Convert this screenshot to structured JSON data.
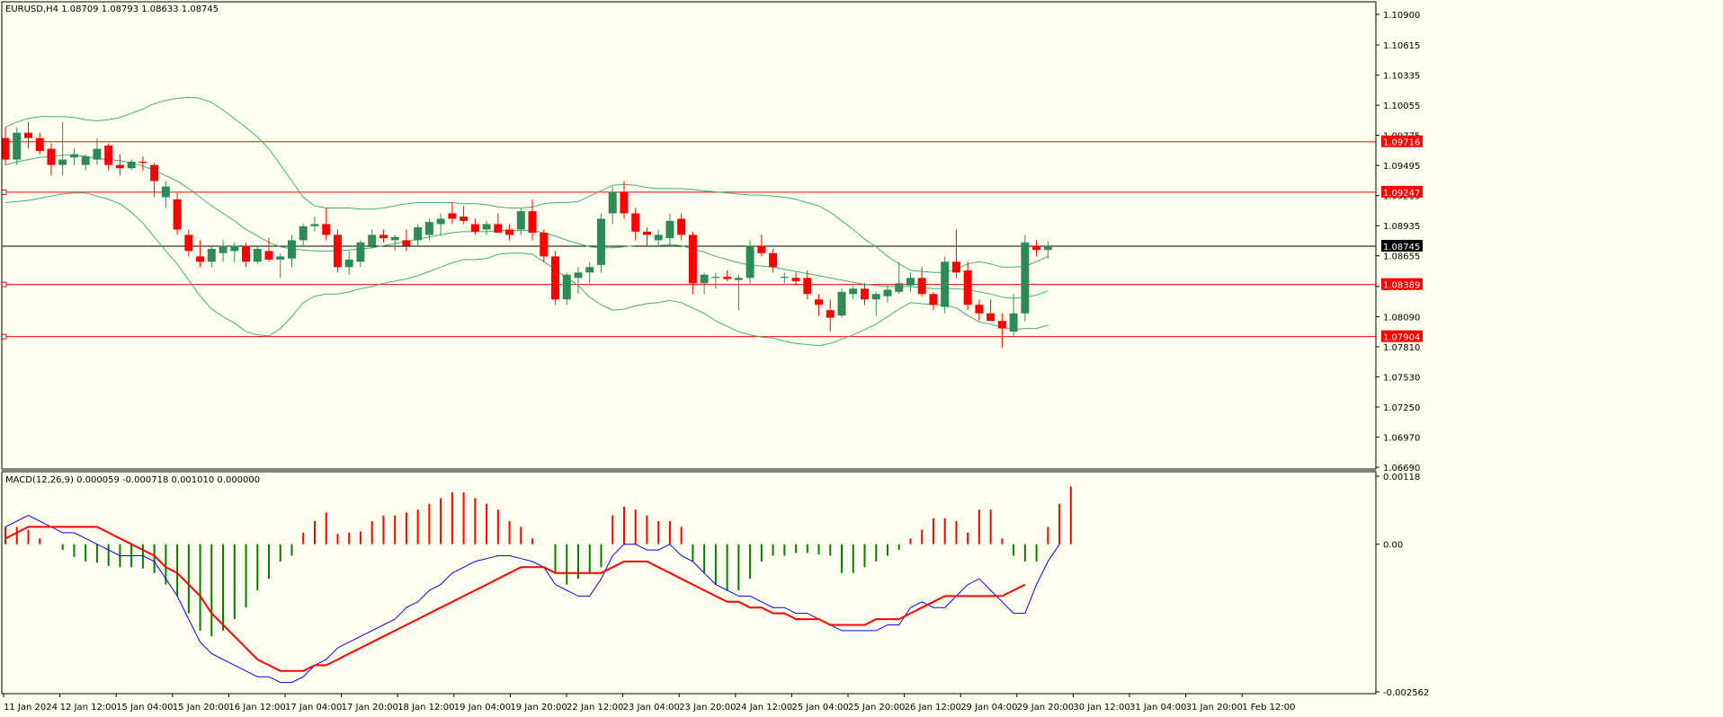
{
  "chart_data": [
    {
      "type": "candlestick",
      "header": "EURUSD,H4  1.08709 1.08793 1.08633 1.08745",
      "ylim": [
        1.0669,
        1.11
      ],
      "price_ticks": [
        "1.10900",
        "1.10615",
        "1.10335",
        "1.10055",
        "1.09775",
        "1.09495",
        "1.09215",
        "1.08935",
        "1.08655",
        "1.08370",
        "1.08090",
        "1.07810",
        "1.07530",
        "1.07250",
        "1.06970",
        "1.06690"
      ],
      "current_price": 1.08745,
      "current_label": "1.08745",
      "hlines": [
        {
          "price": 1.09716,
          "label": "1.09716"
        },
        {
          "price": 1.09247,
          "label": "1.09247"
        },
        {
          "price": 1.08389,
          "label": "1.08389"
        },
        {
          "price": 1.07904,
          "label": "1.07904"
        }
      ],
      "candles": [
        [
          1.0975,
          1.0985,
          1.095,
          1.0955
        ],
        [
          1.0955,
          1.0985,
          1.095,
          1.098
        ],
        [
          1.098,
          1.099,
          1.0965,
          1.0975
        ],
        [
          1.0975,
          1.098,
          1.096,
          1.0963
        ],
        [
          1.0965,
          1.097,
          1.094,
          1.095
        ],
        [
          1.095,
          1.099,
          1.094,
          1.0955
        ],
        [
          1.0957,
          1.0965,
          1.095,
          1.096
        ],
        [
          1.095,
          1.096,
          1.0945,
          1.0958
        ],
        [
          1.0955,
          1.0975,
          1.095,
          1.0965
        ],
        [
          1.0968,
          1.097,
          1.0945,
          1.095
        ],
        [
          1.095,
          1.096,
          1.094,
          1.0947
        ],
        [
          1.0947,
          1.0955,
          1.0945,
          1.0953
        ],
        [
          1.0953,
          1.0958,
          1.0945,
          1.0952
        ],
        [
          1.095,
          1.0952,
          1.092,
          1.0935
        ],
        [
          1.092,
          1.0935,
          1.091,
          1.093
        ],
        [
          1.0918,
          1.0925,
          1.0885,
          1.089
        ],
        [
          1.0885,
          1.089,
          1.0865,
          1.087
        ],
        [
          1.0865,
          1.088,
          1.0855,
          1.086
        ],
        [
          1.086,
          1.0875,
          1.0855,
          1.0872
        ],
        [
          1.0868,
          1.088,
          1.086,
          1.0875
        ],
        [
          1.087,
          1.0878,
          1.086,
          1.0875
        ],
        [
          1.0875,
          1.0878,
          1.0855,
          1.086
        ],
        [
          1.086,
          1.0875,
          1.0858,
          1.0872
        ],
        [
          1.087,
          1.0882,
          1.086,
          1.0862
        ],
        [
          1.0862,
          1.0868,
          1.0845,
          1.0865
        ],
        [
          1.0863,
          1.0885,
          1.0855,
          1.088
        ],
        [
          1.088,
          1.0895,
          1.0875,
          1.0893
        ],
        [
          1.0893,
          1.0902,
          1.0888,
          1.0895
        ],
        [
          1.0895,
          1.091,
          1.088,
          1.0885
        ],
        [
          1.0885,
          1.089,
          1.085,
          1.0855
        ],
        [
          1.0855,
          1.087,
          1.0848,
          1.0862
        ],
        [
          1.086,
          1.088,
          1.0855,
          1.0878
        ],
        [
          1.0875,
          1.089,
          1.0872,
          1.0885
        ],
        [
          1.0885,
          1.089,
          1.0878,
          1.0882
        ],
        [
          1.088,
          1.0885,
          1.087,
          1.0883
        ],
        [
          1.088,
          1.089,
          1.087,
          1.0875
        ],
        [
          1.088,
          1.0895,
          1.0875,
          1.0892
        ],
        [
          1.0885,
          1.09,
          1.088,
          1.0897
        ],
        [
          1.0895,
          1.0905,
          1.0885,
          1.09
        ],
        [
          1.0905,
          1.0915,
          1.0895,
          1.09
        ],
        [
          1.0902,
          1.0912,
          1.0895,
          1.0898
        ],
        [
          1.0895,
          1.09,
          1.0885,
          1.0888
        ],
        [
          1.089,
          1.0898,
          1.0885,
          1.0895
        ],
        [
          1.0895,
          1.0905,
          1.0888,
          1.0887
        ],
        [
          1.089,
          1.0895,
          1.088,
          1.0885
        ],
        [
          1.089,
          1.091,
          1.0885,
          1.0907
        ],
        [
          1.0907,
          1.0918,
          1.088,
          1.0887
        ],
        [
          1.0887,
          1.089,
          1.086,
          1.0865
        ],
        [
          1.0865,
          1.087,
          1.082,
          1.0825
        ],
        [
          1.0825,
          1.085,
          1.082,
          1.0848
        ],
        [
          1.0845,
          1.0855,
          1.083,
          1.085
        ],
        [
          1.085,
          1.086,
          1.084,
          1.0855
        ],
        [
          1.0857,
          1.0905,
          1.085,
          1.09
        ],
        [
          1.0905,
          1.093,
          1.0895,
          1.0925
        ],
        [
          1.0925,
          1.0935,
          1.09,
          1.0905
        ],
        [
          1.0905,
          1.091,
          1.088,
          1.0888
        ],
        [
          1.0888,
          1.0892,
          1.0875,
          1.0885
        ],
        [
          1.088,
          1.089,
          1.0875,
          1.0885
        ],
        [
          1.0882,
          1.0905,
          1.0875,
          1.0898
        ],
        [
          1.09,
          1.0905,
          1.088,
          1.0885
        ],
        [
          1.0885,
          1.0888,
          1.083,
          1.084
        ],
        [
          1.084,
          1.085,
          1.083,
          1.0848
        ],
        [
          1.0845,
          1.085,
          1.0835,
          1.0846
        ],
        [
          1.0846,
          1.0852,
          1.0842,
          1.0844
        ],
        [
          1.0843,
          1.0848,
          1.0815,
          1.0845
        ],
        [
          1.0845,
          1.088,
          1.084,
          1.0875
        ],
        [
          1.0875,
          1.0885,
          1.0865,
          1.0868
        ],
        [
          1.0868,
          1.0872,
          1.085,
          1.0855
        ],
        [
          1.0845,
          1.085,
          1.084,
          1.0846
        ],
        [
          1.0845,
          1.085,
          1.0838,
          1.0842
        ],
        [
          1.0845,
          1.0852,
          1.0825,
          1.083
        ],
        [
          1.0825,
          1.083,
          1.081,
          1.082
        ],
        [
          1.0815,
          1.0825,
          1.0795,
          1.0808
        ],
        [
          1.081,
          1.0835,
          1.0808,
          1.0832
        ],
        [
          1.083,
          1.0838,
          1.0825,
          1.0835
        ],
        [
          1.0835,
          1.084,
          1.082,
          1.0825
        ],
        [
          1.0825,
          1.0832,
          1.081,
          1.083
        ],
        [
          1.0828,
          1.0838,
          1.0822,
          1.0834
        ],
        [
          1.0832,
          1.086,
          1.083,
          1.084
        ],
        [
          1.0838,
          1.085,
          1.0832,
          1.0845
        ],
        [
          1.0845,
          1.0855,
          1.0828,
          1.083
        ],
        [
          1.083,
          1.0832,
          1.0815,
          1.082
        ],
        [
          1.0818,
          1.0865,
          1.0812,
          1.086
        ],
        [
          1.086,
          1.089,
          1.0845,
          1.085
        ],
        [
          1.0852,
          1.086,
          1.0815,
          1.082
        ],
        [
          1.082,
          1.0825,
          1.0805,
          1.0812
        ],
        [
          1.0812,
          1.0825,
          1.0808,
          1.0805
        ],
        [
          1.0805,
          1.0812,
          1.078,
          1.0798
        ],
        [
          1.0795,
          1.083,
          1.079,
          1.0812
        ],
        [
          1.0812,
          1.0885,
          1.0805,
          1.0878
        ],
        [
          1.0875,
          1.088,
          1.0865,
          1.0871
        ],
        [
          1.0871,
          1.0879,
          1.0863,
          1.08745
        ]
      ],
      "middle_band": [
        1.095,
        1.0953,
        1.0955,
        1.0957,
        1.0958,
        1.0959,
        1.0959,
        1.0958,
        1.0956,
        1.0955,
        1.0954,
        1.0952,
        1.0949,
        1.0945,
        1.094,
        1.0935,
        1.0928,
        1.092,
        1.0912,
        1.0905,
        1.0898,
        1.089,
        1.0884,
        1.0878,
        1.0874,
        1.0872,
        1.0871,
        1.087,
        1.087,
        1.087,
        1.0871,
        1.0872,
        1.0873,
        1.0875,
        1.0877,
        1.0879,
        1.0881,
        1.0883,
        1.0885,
        1.0887,
        1.0888,
        1.0888,
        1.0888,
        1.0889,
        1.0889,
        1.0889,
        1.0889,
        1.0887,
        1.0884,
        1.088,
        1.0877,
        1.0874,
        1.0873,
        1.0873,
        1.0874,
        1.0875,
        1.0875,
        1.0875,
        1.0876,
        1.0875,
        1.0872,
        1.0869,
        1.0865,
        1.0862,
        1.0859,
        1.0857,
        1.0856,
        1.0855,
        1.0853,
        1.0851,
        1.0849,
        1.0847,
        1.0845,
        1.0843,
        1.0841,
        1.0839,
        1.0838,
        1.0837,
        1.0837,
        1.0837,
        1.0836,
        1.0835,
        1.0835,
        1.0835,
        1.0834,
        1.0832,
        1.083,
        1.0827,
        1.0826,
        1.0827,
        1.0829,
        1.0833
      ],
      "upper_band": [
        1.0985,
        1.099,
        1.0993,
        1.0995,
        1.0995,
        1.0995,
        1.0994,
        1.0992,
        1.0991,
        1.0992,
        1.0994,
        1.0998,
        1.1002,
        1.1007,
        1.101,
        1.1012,
        1.1013,
        1.1012,
        1.1008,
        1.1001,
        1.0993,
        1.0985,
        1.0976,
        1.0965,
        1.095,
        1.0935,
        1.092,
        1.0912,
        1.091,
        1.091,
        1.091,
        1.0909,
        1.0909,
        1.091,
        1.0912,
        1.0914,
        1.0915,
        1.0915,
        1.0915,
        1.0915,
        1.0914,
        1.0914,
        1.0913,
        1.0911,
        1.091,
        1.091,
        1.0911,
        1.0914,
        1.0915,
        1.0915,
        1.0916,
        1.0921,
        1.0926,
        1.0931,
        1.0932,
        1.0931,
        1.0929,
        1.0928,
        1.0928,
        1.0928,
        1.0927,
        1.0926,
        1.0925,
        1.0924,
        1.0923,
        1.0922,
        1.0922,
        1.0921,
        1.092,
        1.0918,
        1.0915,
        1.0912,
        1.0906,
        1.0898,
        1.089,
        1.0881,
        1.0874,
        1.0865,
        1.0858,
        1.0852,
        1.0851,
        1.085,
        1.085,
        1.0853,
        1.0858,
        1.086,
        1.0858,
        1.0855,
        1.0855,
        1.0856,
        1.086,
        1.0865
      ],
      "lower_band": [
        1.0915,
        1.0916,
        1.0917,
        1.0919,
        1.0921,
        1.0923,
        1.0924,
        1.0924,
        1.0921,
        1.0918,
        1.0914,
        1.0906,
        1.0896,
        1.0883,
        1.087,
        1.0858,
        1.0843,
        1.0828,
        1.0816,
        1.0809,
        1.0803,
        1.0795,
        1.0792,
        1.0791,
        1.0798,
        1.0809,
        1.0822,
        1.0828,
        1.083,
        1.083,
        1.0832,
        1.0835,
        1.0837,
        1.084,
        1.0842,
        1.0844,
        1.0847,
        1.0851,
        1.0855,
        1.0859,
        1.0862,
        1.0862,
        1.0863,
        1.0867,
        1.0868,
        1.0868,
        1.0867,
        1.086,
        1.0853,
        1.0845,
        1.0838,
        1.0827,
        1.082,
        1.0815,
        1.0816,
        1.0819,
        1.0821,
        1.0822,
        1.0824,
        1.0822,
        1.0817,
        1.0812,
        1.0805,
        1.08,
        1.0795,
        1.0792,
        1.079,
        1.0789,
        1.0786,
        1.0784,
        1.0783,
        1.0782,
        1.0784,
        1.0788,
        1.0792,
        1.0797,
        1.0802,
        1.0809,
        1.0816,
        1.0822,
        1.0821,
        1.082,
        1.082,
        1.0817,
        1.081,
        1.0804,
        1.0802,
        1.0799,
        1.0797,
        1.0798,
        1.0798,
        1.0801
      ]
    },
    {
      "type": "macd",
      "header": "MACD(12,26,9) 0.000059 -0.000718 0.001010 0.000000",
      "ylim": [
        -0.002562,
        0.00118
      ],
      "ticks": [
        {
          "value": 0.00118,
          "label": "0.00118"
        },
        {
          "value": 0.0,
          "label": "0.00"
        },
        {
          "value": -0.002562,
          "label": "-0.002562"
        }
      ],
      "histogram": [
        0.0003,
        0.0003,
        0.00025,
        0.0001,
        0.0,
        -0.0001,
        -0.00022,
        -0.0003,
        -0.00032,
        -0.00038,
        -0.0004,
        -0.0004,
        -0.00042,
        -0.0005,
        -0.0007,
        -0.0009,
        -0.0012,
        -0.0015,
        -0.0016,
        -0.0015,
        -0.0013,
        -0.0011,
        -0.0008,
        -0.0006,
        -0.0003,
        -0.0002,
        0.0002,
        0.0004,
        0.00055,
        0.00018,
        0.0002,
        0.00022,
        0.0004,
        0.0005,
        0.0005,
        0.00055,
        0.0006,
        0.0007,
        0.0008,
        0.0009,
        0.0009,
        0.0008,
        0.0007,
        0.0006,
        0.0004,
        0.0003,
        0.0001,
        0.0,
        -0.0005,
        -0.0007,
        -0.0006,
        -0.0005,
        -0.0004,
        0.0005,
        0.00065,
        0.0006,
        0.0005,
        0.0004,
        0.0004,
        0.0003,
        -0.0003,
        -0.0005,
        -0.0007,
        -0.0008,
        -0.0008,
        -0.0006,
        -0.0003,
        -0.0002,
        -0.0002,
        -0.00015,
        -0.00015,
        -0.00018,
        -0.0002,
        -0.0005,
        -0.0005,
        -0.0004,
        -0.0003,
        -0.0002,
        -0.0001,
        0.0001,
        0.00025,
        0.00045,
        0.00045,
        0.0004,
        0.0002,
        0.0006,
        0.0006,
        0.0001,
        -0.0002,
        -0.0003,
        -0.0003,
        0.0003,
        0.0007,
        0.001
      ],
      "macd": [
        0.0003,
        0.0004,
        0.0005,
        0.0004,
        0.0003,
        0.0002,
        0.0002,
        0.0001,
        0.0,
        -0.0001,
        -0.0002,
        -0.0002,
        -0.0002,
        -0.0003,
        -0.0006,
        -0.0009,
        -0.0013,
        -0.0017,
        -0.0019,
        -0.002,
        -0.0021,
        -0.0022,
        -0.0023,
        -0.0023,
        -0.0024,
        -0.0024,
        -0.0023,
        -0.0021,
        -0.002,
        -0.0018,
        -0.0017,
        -0.0016,
        -0.0015,
        -0.0014,
        -0.0013,
        -0.0011,
        -0.001,
        -0.0008,
        -0.0007,
        -0.0005,
        -0.0004,
        -0.0003,
        -0.00025,
        -0.0002,
        -0.0002,
        -0.00025,
        -0.0003,
        -0.0004,
        -0.0007,
        -0.0008,
        -0.0009,
        -0.0009,
        -0.0006,
        -0.0002,
        0.0,
        0.0,
        -0.0001,
        -0.0001,
        0.0,
        -0.0002,
        -0.0003,
        -0.0005,
        -0.0007,
        -0.0008,
        -0.0009,
        -0.0009,
        -0.001,
        -0.0011,
        -0.0011,
        -0.0012,
        -0.0012,
        -0.0013,
        -0.0014,
        -0.0015,
        -0.0015,
        -0.0015,
        -0.0015,
        -0.0014,
        -0.0014,
        -0.0011,
        -0.001,
        -0.0011,
        -0.0011,
        -0.0009,
        -0.0007,
        -0.0006,
        -0.0008,
        -0.001,
        -0.0012,
        -0.0012,
        -0.0007,
        -0.0003,
        0.0
      ],
      "signal": [
        0.0001,
        0.0002,
        0.0003,
        0.0003,
        0.0003,
        0.0003,
        0.0003,
        0.0003,
        0.0003,
        0.0002,
        0.0001,
        0.0,
        -0.0001,
        -0.0002,
        -0.0004,
        -0.0005,
        -0.0007,
        -0.0009,
        -0.0012,
        -0.0014,
        -0.0016,
        -0.0018,
        -0.002,
        -0.0021,
        -0.0022,
        -0.0022,
        -0.0022,
        -0.0021,
        -0.0021,
        -0.002,
        -0.0019,
        -0.0018,
        -0.0017,
        -0.0016,
        -0.0015,
        -0.0014,
        -0.0013,
        -0.0012,
        -0.0011,
        -0.001,
        -0.0009,
        -0.0008,
        -0.0007,
        -0.0006,
        -0.0005,
        -0.0004,
        -0.0004,
        -0.0004,
        -0.0005,
        -0.0005,
        -0.0005,
        -0.0005,
        -0.0005,
        -0.0004,
        -0.0003,
        -0.0003,
        -0.0003,
        -0.0004,
        -0.0005,
        -0.0006,
        -0.0007,
        -0.0008,
        -0.0009,
        -0.001,
        -0.001,
        -0.0011,
        -0.0011,
        -0.0012,
        -0.0012,
        -0.0013,
        -0.0013,
        -0.0013,
        -0.0014,
        -0.0014,
        -0.0014,
        -0.0014,
        -0.0013,
        -0.0013,
        -0.0013,
        -0.0012,
        -0.0011,
        -0.001,
        -0.0009,
        -0.0009,
        -0.0009,
        -0.0009,
        -0.0009,
        -0.0009,
        -0.0008,
        -0.0007
      ]
    }
  ],
  "time_axis": {
    "labels": [
      "11 Jan 2024",
      "12 Jan 12:00",
      "15 Jan 04:00",
      "15 Jan 20:00",
      "16 Jan 12:00",
      "17 Jan 04:00",
      "17 Jan 20:00",
      "18 Jan 12:00",
      "19 Jan 04:00",
      "19 Jan 20:00",
      "22 Jan 12:00",
      "23 Jan 04:00",
      "23 Jan 20:00",
      "24 Jan 12:00",
      "25 Jan 04:00",
      "25 Jan 20:00",
      "26 Jan 12:00",
      "29 Jan 04:00",
      "29 Jan 20:00",
      "30 Jan 12:00",
      "31 Jan 04:00",
      "31 Jan 20:00",
      "1 Feb 12:00"
    ]
  },
  "colors": {
    "background": "#fffff0",
    "bull": "#2e8b57",
    "bear": "#ff0000",
    "band": "#3cb371",
    "hline": "#ff0000",
    "current_line": "#000000",
    "macd_line": "#0000ff",
    "signal_line": "#ff0000"
  }
}
